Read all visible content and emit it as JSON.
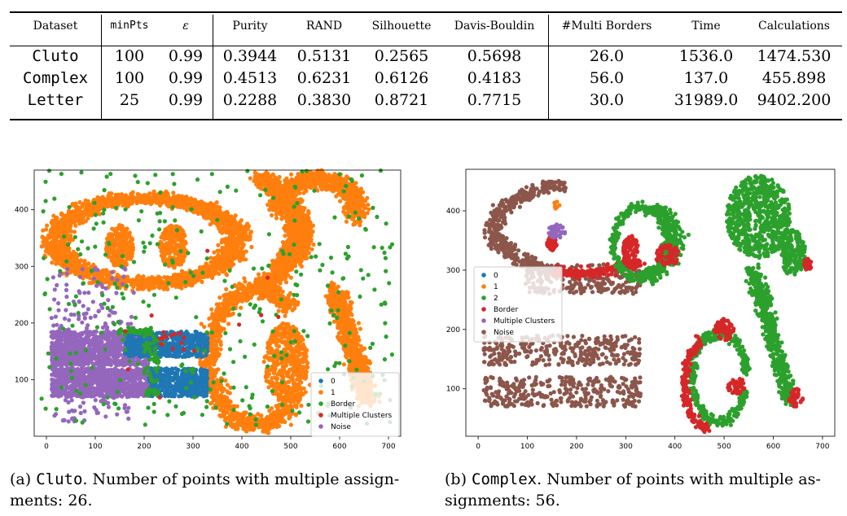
{
  "table": {
    "headers": [
      "Dataset",
      "minPts",
      "ε",
      "Purity",
      "RAND",
      "Silhouette",
      "Davis-Bouldin",
      "#Multi Borders",
      "Time",
      "Calculations"
    ],
    "rows": [
      [
        "Cluto",
        "100",
        "0.99",
        "0.3944",
        "0.5131",
        "0.2565",
        "0.5698",
        "26.0",
        "1536.0",
        "1474.530"
      ],
      [
        "Complex",
        "100",
        "0.99",
        "0.4513",
        "0.6231",
        "0.6126",
        "0.4183",
        "56.0",
        "137.0",
        "455.898"
      ],
      [
        "Letter",
        "25",
        "0.99",
        "0.2288",
        "0.3830",
        "0.8721",
        "0.7715",
        "30.0",
        "31989.0",
        "9402.200"
      ]
    ]
  },
  "chart_data": [
    {
      "type": "scatter",
      "xlim": [
        -25,
        725
      ],
      "ylim": [
        0,
        470
      ],
      "xticks": [
        0,
        100,
        200,
        300,
        400,
        500,
        600,
        700
      ],
      "yticks": [
        100,
        200,
        300,
        400
      ],
      "legend_placement": "lower-right",
      "legend": [
        {
          "label": "0",
          "color": "#1f77b4"
        },
        {
          "label": "1",
          "color": "#ff7f0e"
        },
        {
          "label": "Border",
          "color": "#2ca02c"
        },
        {
          "label": "Multiple Clusters",
          "color": "#d62728"
        },
        {
          "label": "Noise",
          "color": "#9467bd"
        }
      ]
    },
    {
      "type": "scatter",
      "xlim": [
        -25,
        725
      ],
      "ylim": [
        20,
        470
      ],
      "xticks": [
        0,
        100,
        200,
        300,
        400,
        500,
        600,
        700
      ],
      "yticks": [
        100,
        200,
        300,
        400
      ],
      "legend_placement": "center-left",
      "legend": [
        {
          "label": "0",
          "color": "#1f77b4"
        },
        {
          "label": "1",
          "color": "#ff7f0e"
        },
        {
          "label": "2",
          "color": "#2ca02c"
        },
        {
          "label": "Border",
          "color": "#d62728"
        },
        {
          "label": "Multiple Clusters",
          "color": "#9467bd"
        },
        {
          "label": "Noise",
          "color": "#8c564b"
        }
      ]
    }
  ],
  "captions": {
    "a_label": "(a) ",
    "a_name": "Cluto",
    "a_text": ". Number of points with multiple assign-",
    "a_text2": "ments: 26.",
    "b_label": "(b) ",
    "b_name": "Complex",
    "b_text": ". Number of points with multiple as-",
    "b_text2": "signments: 56."
  }
}
